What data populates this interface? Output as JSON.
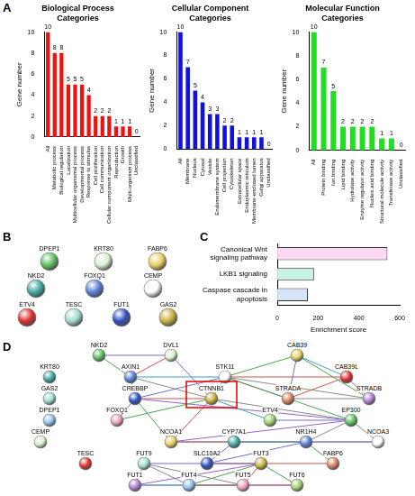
{
  "panel_labels": [
    "A",
    "B",
    "C",
    "D"
  ],
  "chart_data": [
    {
      "type": "bar",
      "title": "Biological Process Categories",
      "y_label": "Gene number",
      "categories": [
        "All",
        "Metabolic process",
        "Biological regulation",
        "Localization",
        "Multicellular organismal process",
        "Developmental process",
        "Response to stimulus",
        "Cell proliferation",
        "Cell communication",
        "Cellular component organization",
        "Reproduction",
        "Growth",
        "Multi-organism process",
        "Unclassified"
      ],
      "values": [
        10,
        8,
        8,
        5,
        5,
        5,
        4,
        2,
        2,
        2,
        1,
        1,
        1,
        0
      ],
      "color": "#ee1111",
      "ylim": [
        0,
        10
      ],
      "yticks": [
        0,
        2,
        4,
        6,
        8,
        10
      ],
      "grid": false,
      "data_labels": true
    },
    {
      "type": "bar",
      "title": "Cellular Component Categories",
      "y_label": "Gene number",
      "categories": [
        "All",
        "Membrane",
        "Nucleus",
        "Cytosol",
        "Vesicle",
        "Endomembrane system",
        "Cell projection",
        "Cytoskeleton",
        "Extracellular space",
        "Endoplasmic reticulum",
        "Membrane-enclosed lumen",
        "Golgi apparatus",
        "Unclassified"
      ],
      "values": [
        10,
        7,
        5,
        4,
        3,
        3,
        2,
        2,
        1,
        1,
        1,
        1,
        0
      ],
      "color": "#1111dd",
      "ylim": [
        0,
        10
      ],
      "yticks": [
        0,
        2,
        4,
        6,
        8,
        10
      ],
      "grid": false,
      "data_labels": true
    },
    {
      "type": "bar",
      "title": "Molecular Function Categories",
      "y_label": "Gene number",
      "categories": [
        "All",
        "Protein binding",
        "Ion binding",
        "Lipid binding",
        "Hydrolase activity",
        "Enzyme regulator activity",
        "Nucleic acid binding",
        "Structural molecule activity",
        "Transferase activity",
        "Unclassified"
      ],
      "values": [
        10,
        7,
        5,
        2,
        2,
        2,
        2,
        1,
        1,
        0
      ],
      "color": "#22dd22",
      "ylim": [
        0,
        10
      ],
      "yticks": [
        0,
        2,
        4,
        6,
        8,
        10
      ],
      "grid": false,
      "data_labels": true
    },
    {
      "type": "bar",
      "orientation": "horizontal",
      "x_label": "Enrichment score",
      "categories": [
        "Canonical Wnt signaling pathway",
        "LKB1 signaling",
        "Caspase cascade in apoptosis"
      ],
      "values": [
        540,
        180,
        150
      ],
      "colors": [
        "#fbd9f3",
        "#c9f2e3",
        "#d6e4f7"
      ],
      "xlim": [
        0,
        600
      ],
      "xticks": [
        0,
        200,
        400,
        600
      ],
      "grid": false,
      "data_labels": false
    }
  ],
  "network_b": {
    "nodes": [
      "DPEP1",
      "KRT80",
      "FABP6",
      "NKD2",
      "FOXQ1",
      "CEMP",
      "ETV4",
      "TESC",
      "FUT1",
      "GAS2"
    ]
  },
  "network_d": {
    "nodes": [
      "NKD2",
      "DVL1",
      "CAB39",
      "KRT80",
      "AXIN1",
      "STK11",
      "CAB39L",
      "GAS2",
      "CREBBP",
      "CTNNB1",
      "STRADA",
      "STRADB",
      "DPEP1",
      "FOXQ1",
      "ETV4",
      "EP300",
      "CEMP",
      "NCOA1",
      "CYP7A1",
      "NR1H4",
      "NCOA3",
      "TESC",
      "FUT9",
      "SLC10A2",
      "FUT3",
      "FABP6",
      "FUT1",
      "FUT4",
      "FUT5",
      "FUT6"
    ],
    "highlight": "CTNNB1",
    "edges": [
      [
        "NKD2",
        "DVL1"
      ],
      [
        "NKD2",
        "AXIN1"
      ],
      [
        "DVL1",
        "AXIN1"
      ],
      [
        "DVL1",
        "CTNNB1"
      ],
      [
        "AXIN1",
        "CTNNB1"
      ],
      [
        "AXIN1",
        "STK11"
      ],
      [
        "AXIN1",
        "CREBBP"
      ],
      [
        "STK11",
        "CAB39"
      ],
      [
        "STK11",
        "CAB39L"
      ],
      [
        "STK11",
        "STRADA"
      ],
      [
        "STK11",
        "STRADB"
      ],
      [
        "CAB39",
        "CAB39L"
      ],
      [
        "CAB39",
        "STRADA"
      ],
      [
        "CAB39",
        "STRADB"
      ],
      [
        "CAB39L",
        "STRADA"
      ],
      [
        "CAB39L",
        "STRADB"
      ],
      [
        "STRADA",
        "STRADB"
      ],
      [
        "STK11",
        "CTNNB1"
      ],
      [
        "STK11",
        "CREBBP"
      ],
      [
        "STK11",
        "EP300"
      ],
      [
        "CREBBP",
        "CTNNB1"
      ],
      [
        "CREBBP",
        "EP300"
      ],
      [
        "CTNNB1",
        "EP300"
      ],
      [
        "CTNNB1",
        "ETV4"
      ],
      [
        "ETV4",
        "EP300"
      ],
      [
        "CREBBP",
        "NCOA1"
      ],
      [
        "CTNNB1",
        "NCOA1"
      ],
      [
        "EP300",
        "NCOA1"
      ],
      [
        "EP300",
        "NCOA3"
      ],
      [
        "NCOA1",
        "NCOA3"
      ],
      [
        "CREBBP",
        "FOXQ1"
      ],
      [
        "FOXQ1",
        "CTNNB1"
      ],
      [
        "NCOA1",
        "NR1H4"
      ],
      [
        "NCOA3",
        "NR1H4"
      ],
      [
        "EP300",
        "NR1H4"
      ],
      [
        "NR1H4",
        "CYP7A1"
      ],
      [
        "NR1H4",
        "SLC10A2"
      ],
      [
        "NR1H4",
        "FABP6"
      ],
      [
        "SLC10A2",
        "FABP6"
      ],
      [
        "CYP7A1",
        "SLC10A2"
      ],
      [
        "FUT9",
        "FUT4"
      ],
      [
        "FUT4",
        "FUT5"
      ],
      [
        "FUT5",
        "FUT6"
      ],
      [
        "FUT3",
        "FUT6"
      ],
      [
        "FUT3",
        "FUT5"
      ],
      [
        "FUT1",
        "FUT4"
      ],
      [
        "FUT1",
        "FUT9"
      ],
      [
        "FUT1",
        "FUT5"
      ],
      [
        "FUT9",
        "FUT3"
      ],
      [
        "FUT4",
        "FUT3"
      ],
      [
        "FUT4",
        "FUT6"
      ],
      [
        "FUT3",
        "FUT1"
      ],
      [
        "FUT9",
        "FUT5"
      ]
    ]
  }
}
